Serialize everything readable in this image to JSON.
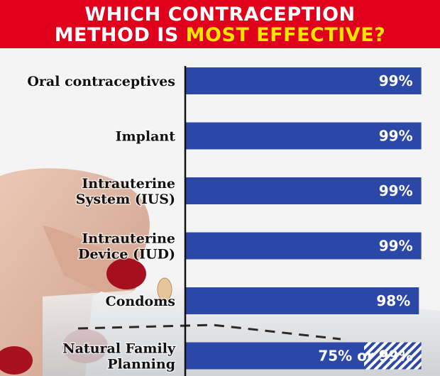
{
  "header": {
    "line1": "WHICH CONTRACEPTION",
    "line2_white": "METHOD IS ",
    "line2_yellow": "MOST EFFECTIVE?"
  },
  "colors": {
    "header_bg": "#e0001b",
    "highlight": "#ffe400",
    "bar": "#2b47a8",
    "axis": "#111111"
  },
  "chart_data": {
    "type": "bar",
    "orientation": "horizontal",
    "categories": [
      [
        "Oral contraceptives"
      ],
      [
        "Implant"
      ],
      [
        "Intrauterine",
        "System (IUS)"
      ],
      [
        "Intrauterine",
        "Device (IUD)"
      ],
      [
        "Condoms"
      ],
      [
        "Natural Family",
        "Planning"
      ]
    ],
    "values": [
      99,
      99,
      99,
      99,
      98,
      99
    ],
    "low_values": [
      null,
      null,
      null,
      null,
      null,
      75
    ],
    "value_labels": [
      "99%",
      "99%",
      "99%",
      "99%",
      "98%",
      "75% or 99%"
    ],
    "xlim": [
      0,
      100
    ],
    "grid": false,
    "legend": "none"
  },
  "footnote": ""
}
